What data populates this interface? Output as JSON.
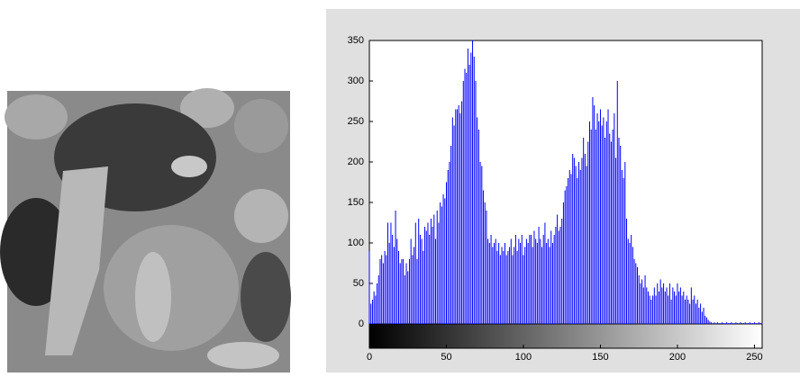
{
  "chart_data": {
    "type": "stem",
    "color": "#0000ff",
    "values": [
      90,
      25,
      30,
      40,
      35,
      50,
      60,
      80,
      85,
      75,
      90,
      85,
      125,
      100,
      125,
      110,
      95,
      140,
      105,
      90,
      75,
      80,
      80,
      60,
      75,
      65,
      80,
      105,
      85,
      95,
      125,
      80,
      130,
      110,
      105,
      90,
      120,
      115,
      125,
      110,
      130,
      120,
      135,
      105,
      140,
      125,
      150,
      145,
      160,
      155,
      175,
      190,
      200,
      220,
      255,
      245,
      265,
      265,
      270,
      260,
      275,
      300,
      315,
      310,
      340,
      320,
      335,
      350,
      330,
      300,
      255,
      240,
      200,
      195,
      165,
      150,
      140,
      105,
      100,
      110,
      95,
      100,
      105,
      90,
      100,
      85,
      95,
      90,
      100,
      85,
      90,
      95,
      105,
      85,
      95,
      110,
      90,
      105,
      100,
      110,
      85,
      95,
      105,
      100,
      110,
      110,
      95,
      115,
      105,
      100,
      120,
      105,
      95,
      110,
      125,
      100,
      105,
      95,
      115,
      100,
      110,
      120,
      135,
      115,
      120,
      130,
      150,
      165,
      170,
      180,
      190,
      185,
      210,
      205,
      195,
      180,
      200,
      190,
      205,
      230,
      210,
      195,
      225,
      250,
      240,
      280,
      270,
      240,
      260,
      250,
      265,
      245,
      255,
      230,
      250,
      265,
      235,
      225,
      240,
      260,
      205,
      300,
      230,
      220,
      190,
      180,
      200,
      130,
      105,
      100,
      110,
      95,
      80,
      75,
      70,
      60,
      50,
      55,
      45,
      60,
      45,
      40,
      35,
      30,
      35,
      45,
      35,
      50,
      40,
      55,
      45,
      50,
      40,
      45,
      35,
      50,
      30,
      45,
      40,
      35,
      50,
      40,
      45,
      35,
      40,
      30,
      35,
      30,
      25,
      45,
      30,
      35,
      25,
      30,
      20,
      25,
      15,
      20,
      10,
      8,
      5,
      3,
      2,
      1,
      2,
      1,
      2,
      1,
      1,
      2,
      1,
      1,
      2,
      1,
      1,
      2,
      1,
      1,
      2,
      1,
      1,
      2,
      1,
      1,
      2,
      1,
      1,
      2,
      1,
      1,
      2,
      1,
      1,
      2,
      1,
      1
    ],
    "xlim": [
      0,
      255
    ],
    "xticks": [
      0,
      50,
      100,
      150,
      200,
      250
    ],
    "ylim": [
      0,
      350
    ],
    "yticks": [
      0,
      50,
      100,
      150,
      200,
      250,
      300,
      350
    ]
  }
}
